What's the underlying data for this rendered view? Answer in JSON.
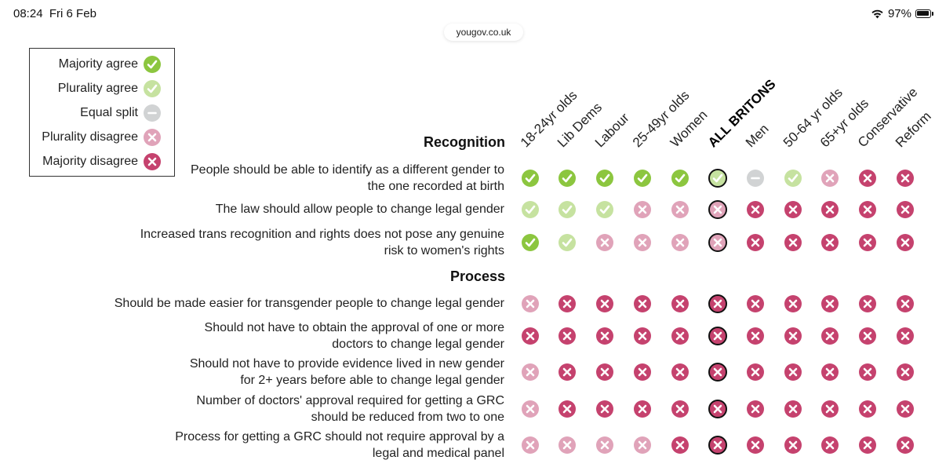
{
  "status_bar": {
    "time": "08:24",
    "date": "Fri 6 Feb",
    "battery": "97%",
    "wifi_icon": "wifi-icon",
    "battery_icon": "battery-icon"
  },
  "browser": {
    "url": "yougov.co.uk"
  },
  "colors": {
    "majority_agree": "#8cc63f",
    "plurality_agree": "#c6e2a0",
    "equal_split": "#d1d3d4",
    "plurality_disagree": "#e0a3b9",
    "majority_disagree": "#c5426e",
    "highlight_ring": "#111111"
  },
  "legend": {
    "items": [
      {
        "label": "Majority agree",
        "code": "MA"
      },
      {
        "label": "Plurality agree",
        "code": "PA"
      },
      {
        "label": "Equal split",
        "code": "EQ"
      },
      {
        "label": "Plurality disagree",
        "code": "PD"
      },
      {
        "label": "Majority disagree",
        "code": "MD"
      }
    ]
  },
  "chart_data": {
    "type": "table",
    "columns": [
      "18-24yr olds",
      "Lib Dems",
      "Labour",
      "25-49yr olds",
      "Women",
      "ALL BRITONS",
      "Men",
      "50-64 yr olds",
      "65+yr olds",
      "Conservative",
      "Reform"
    ],
    "highlight_column": "ALL BRITONS",
    "sections": [
      {
        "heading": "Recognition",
        "rows": [
          {
            "label": "People should be able to identify as a different gender to the one recorded at birth",
            "values": [
              "MA",
              "MA",
              "MA",
              "MA",
              "MA",
              "PA",
              "EQ",
              "PA",
              "PD",
              "MD",
              "MD"
            ]
          },
          {
            "label": "The law should allow people to change legal gender",
            "values": [
              "PA",
              "PA",
              "PA",
              "PD",
              "PD",
              "PD",
              "MD",
              "MD",
              "MD",
              "MD",
              "MD"
            ]
          },
          {
            "label": "Increased trans recognition and rights does not pose any genuine risk to women's rights",
            "values": [
              "MA",
              "PA",
              "PD",
              "PD",
              "PD",
              "PD",
              "MD",
              "MD",
              "MD",
              "MD",
              "MD"
            ]
          }
        ]
      },
      {
        "heading": "Process",
        "rows": [
          {
            "label": "Should be made easier for transgender people to change legal gender",
            "values": [
              "PD",
              "MD",
              "MD",
              "MD",
              "MD",
              "MD",
              "MD",
              "MD",
              "MD",
              "MD",
              "MD"
            ]
          },
          {
            "label": "Should not have to obtain the approval of one or more doctors to change legal gender",
            "values": [
              "MD",
              "MD",
              "MD",
              "MD",
              "MD",
              "MD",
              "MD",
              "MD",
              "MD",
              "MD",
              "MD"
            ]
          },
          {
            "label": "Should not have to provide evidence lived in new gender for 2+ years before able to change legal gender",
            "values": [
              "PD",
              "MD",
              "MD",
              "MD",
              "MD",
              "MD",
              "MD",
              "MD",
              "MD",
              "MD",
              "MD"
            ]
          },
          {
            "label": "Number of doctors' approval required for getting a GRC should be reduced from two to one",
            "values": [
              "PD",
              "MD",
              "MD",
              "MD",
              "MD",
              "MD",
              "MD",
              "MD",
              "MD",
              "MD",
              "MD"
            ]
          },
          {
            "label": "Process for getting a GRC should not require approval by a legal and medical panel",
            "values": [
              "PD",
              "PD",
              "PD",
              "PD",
              "MD",
              "MD",
              "MD",
              "MD",
              "MD",
              "MD",
              "MD"
            ]
          }
        ]
      }
    ]
  }
}
